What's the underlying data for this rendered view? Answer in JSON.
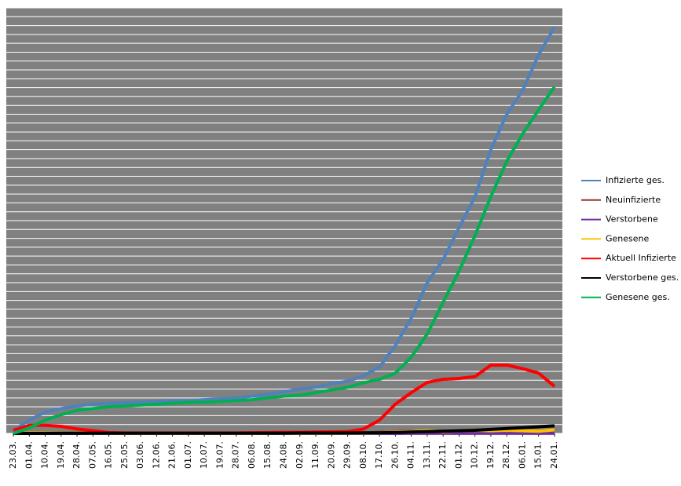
{
  "chart_data": {
    "type": "line",
    "categories": [
      "23.03.",
      "01.04.",
      "10.04.",
      "19.04.",
      "28.04.",
      "07.05.",
      "16.05.",
      "25.05.",
      "03.06.",
      "12.06.",
      "21.06.",
      "01.07.",
      "10.07.",
      "19.07.",
      "28.07.",
      "06.08.",
      "15.08.",
      "24.08.",
      "02.09.",
      "11.09.",
      "20.09.",
      "29.09.",
      "08.10.",
      "17.10.",
      "26.10.",
      "04.11.",
      "13.11.",
      "22.11.",
      "01.12.",
      "10.12.",
      "19.12.",
      "28.12.",
      "06.01.",
      "15.01.",
      "24.01."
    ],
    "ylim": [
      0,
      48
    ],
    "ygrid": [
      0,
      1,
      2,
      3,
      4,
      5,
      6,
      7,
      8,
      9,
      10,
      11,
      12,
      13,
      14,
      15,
      16,
      17,
      18,
      19,
      20,
      21,
      22,
      23,
      24,
      25,
      26,
      27,
      28,
      29,
      30,
      31,
      32,
      33,
      34,
      35,
      36,
      37,
      38,
      39,
      40,
      41,
      42,
      43,
      44,
      45,
      46,
      47,
      48
    ],
    "grid": true,
    "legend": "right",
    "series": [
      {
        "name": "Infizierte ges.",
        "color": "#4f81bd",
        "values": [
          0.35,
          1.5,
          2.4,
          2.8,
          3.1,
          3.3,
          3.4,
          3.45,
          3.5,
          3.6,
          3.7,
          3.7,
          3.8,
          3.9,
          4.0,
          4.2,
          4.4,
          4.7,
          5.0,
          5.2,
          5.6,
          5.9,
          6.5,
          7.5,
          9.9,
          13.0,
          17.0,
          19.6,
          23.2,
          26.7,
          32.0,
          36.0,
          38.7,
          42.7,
          45.8
        ]
      },
      {
        "name": "Neuinfizierte",
        "color": "#953735",
        "values": [
          0.05,
          0.05,
          0.04,
          0.03,
          0.02,
          0.01,
          0.01,
          0.01,
          0.01,
          0.01,
          0.01,
          0.01,
          0.01,
          0.01,
          0.02,
          0.02,
          0.02,
          0.03,
          0.03,
          0.03,
          0.04,
          0.05,
          0.08,
          0.12,
          0.2,
          0.25,
          0.25,
          0.25,
          0.25,
          0.3,
          0.35,
          0.3,
          0.25,
          0.25,
          0.2
        ]
      },
      {
        "name": "Verstorbene",
        "color": "#7030a0",
        "values": [
          0,
          0,
          0,
          0,
          0,
          0,
          0,
          0,
          0,
          0,
          0,
          0,
          0,
          0,
          0,
          0,
          0,
          0,
          0,
          0,
          0,
          0,
          0,
          0,
          0,
          0.01,
          0.01,
          0.01,
          0.01,
          0.01,
          0.01,
          0.01,
          0.01,
          0.01,
          0.01
        ]
      },
      {
        "name": "Genesene",
        "color": "#ffc000",
        "values": [
          0,
          0.05,
          0.07,
          0.05,
          0.04,
          0.03,
          0.02,
          0.01,
          0.01,
          0.01,
          0.01,
          0.01,
          0.01,
          0.01,
          0.01,
          0.01,
          0.02,
          0.02,
          0.02,
          0.02,
          0.03,
          0.04,
          0.05,
          0.08,
          0.15,
          0.2,
          0.3,
          0.2,
          0.3,
          0.35,
          0.3,
          0.35,
          0.3,
          0.25,
          0.4
        ]
      },
      {
        "name": "Aktuell Infizierte",
        "color": "#ff0000",
        "values": [
          0.35,
          0.9,
          0.9,
          0.8,
          0.5,
          0.3,
          0.1,
          0.05,
          0.05,
          0.05,
          0.05,
          0.05,
          0.05,
          0.05,
          0.05,
          0.08,
          0.1,
          0.12,
          0.12,
          0.15,
          0.18,
          0.2,
          0.5,
          1.5,
          3.3,
          4.6,
          5.75,
          6.1,
          6.2,
          6.4,
          7.7,
          7.7,
          7.3,
          6.8,
          5.3
        ]
      },
      {
        "name": "Verstorbene ges.",
        "color": "#000000",
        "values": [
          0,
          0,
          0.01,
          0.02,
          0.03,
          0.03,
          0.03,
          0.03,
          0.03,
          0.03,
          0.03,
          0.03,
          0.03,
          0.03,
          0.03,
          0.03,
          0.03,
          0.03,
          0.04,
          0.04,
          0.04,
          0.05,
          0.06,
          0.08,
          0.1,
          0.15,
          0.2,
          0.25,
          0.3,
          0.35,
          0.45,
          0.55,
          0.65,
          0.75,
          0.85
        ]
      },
      {
        "name": "Genesene ges.",
        "color": "#00b050",
        "values": [
          0,
          0.6,
          1.5,
          2.1,
          2.6,
          2.8,
          3.0,
          3.1,
          3.2,
          3.3,
          3.4,
          3.5,
          3.5,
          3.6,
          3.7,
          3.8,
          4.0,
          4.2,
          4.3,
          4.6,
          4.9,
          5.2,
          5.7,
          6.1,
          6.8,
          8.6,
          11.2,
          14.8,
          18.3,
          22.3,
          26.7,
          30.7,
          33.8,
          36.5,
          39.1
        ]
      }
    ]
  }
}
